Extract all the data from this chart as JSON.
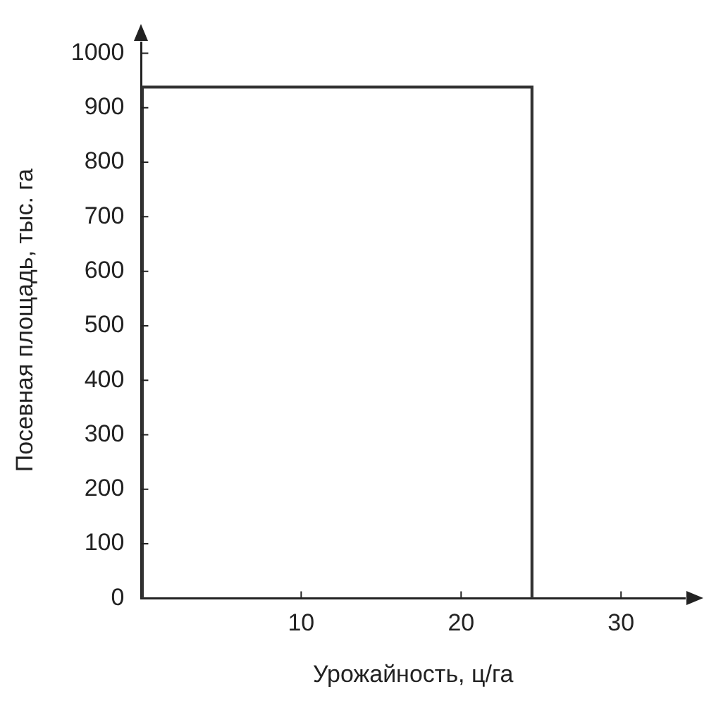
{
  "chart_data": {
    "type": "histogram",
    "xlabel": "Урожайность, ц/га",
    "ylabel": "Посевная площадь, тыс. га",
    "bins": [
      0,
      24.5
    ],
    "values": [
      940
    ],
    "color": "#333333",
    "xlim": [
      0,
      34
    ],
    "ylim": [
      0,
      1020
    ],
    "xticks": [
      10,
      20,
      30
    ],
    "yticks": [
      0,
      100,
      200,
      300,
      400,
      500,
      600,
      700,
      800,
      900,
      1000
    ]
  }
}
